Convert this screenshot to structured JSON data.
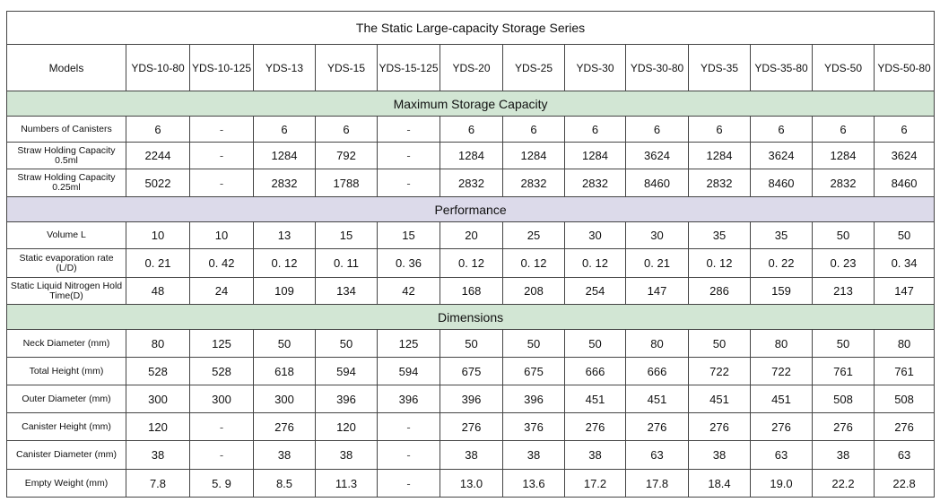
{
  "title": "The Static Large-capacity Storage Series",
  "models_label": "Models",
  "models": [
    "YDS-10-80",
    "YDS-10-125",
    "YDS-13",
    "YDS-15",
    "YDS-15-125",
    "YDS-20",
    "YDS-25",
    "YDS-30",
    "YDS-30-80",
    "YDS-35",
    "YDS-35-80",
    "YDS-50",
    "YDS-50-80"
  ],
  "sections": [
    {
      "name": "Maximum Storage Capacity",
      "color": "#d2e6d4",
      "rows": [
        {
          "label": "Numbers of Canisters",
          "values": [
            "6",
            "-",
            "6",
            "6",
            "-",
            "6",
            "6",
            "6",
            "6",
            "6",
            "6",
            "6",
            "6"
          ]
        },
        {
          "label": "Straw Holding Capacity 0.5ml",
          "values": [
            "2244",
            "-",
            "1284",
            "792",
            "-",
            "1284",
            "1284",
            "1284",
            "3624",
            "1284",
            "3624",
            "1284",
            "3624"
          ]
        },
        {
          "label": "Straw Holding Capacity 0.25ml",
          "values": [
            "5022",
            "-",
            "2832",
            "1788",
            "-",
            "2832",
            "2832",
            "2832",
            "8460",
            "2832",
            "8460",
            "2832",
            "8460"
          ]
        }
      ]
    },
    {
      "name": "Performance",
      "color": "#dcdaea",
      "rows": [
        {
          "label": "Volume L",
          "values": [
            "10",
            "10",
            "13",
            "15",
            "15",
            "20",
            "25",
            "30",
            "30",
            "35",
            "35",
            "50",
            "50"
          ]
        },
        {
          "label": "Static evaporation rate (L/D)",
          "values": [
            "0. 21",
            "0. 42",
            "0. 12",
            "0. 11",
            "0. 36",
            "0. 12",
            "0. 12",
            "0. 12",
            "0. 21",
            "0. 12",
            "0. 22",
            "0. 23",
            "0. 34"
          ]
        },
        {
          "label": "Static Liquid Nitrogen Hold Time(D)",
          "values": [
            "48",
            "24",
            "109",
            "134",
            "42",
            "168",
            "208",
            "254",
            "147",
            "286",
            "159",
            "213",
            "147"
          ]
        }
      ]
    },
    {
      "name": "Dimensions",
      "color": "#d2e6d4",
      "rows": [
        {
          "label": "Neck Diameter (mm)",
          "values": [
            "80",
            "125",
            "50",
            "50",
            "125",
            "50",
            "50",
            "50",
            "80",
            "50",
            "80",
            "50",
            "80"
          ]
        },
        {
          "label": "Total Height (mm)",
          "values": [
            "528",
            "528",
            "618",
            "594",
            "594",
            "675",
            "675",
            "666",
            "666",
            "722",
            "722",
            "761",
            "761"
          ]
        },
        {
          "label": "Outer Diameter (mm)",
          "values": [
            "300",
            "300",
            "300",
            "396",
            "396",
            "396",
            "396",
            "451",
            "451",
            "451",
            "451",
            "508",
            "508"
          ]
        },
        {
          "label": "Canister Height (mm)",
          "values": [
            "120",
            "-",
            "276",
            "120",
            "-",
            "276",
            "376",
            "276",
            "276",
            "276",
            "276",
            "276",
            "276"
          ]
        },
        {
          "label": "Canister Diameter (mm)",
          "values": [
            "38",
            "-",
            "38",
            "38",
            "-",
            "38",
            "38",
            "38",
            "63",
            "38",
            "63",
            "38",
            "63"
          ]
        },
        {
          "label": "Empty Weight (mm)",
          "values": [
            "7.8",
            "5. 9",
            "8.5",
            "11.3",
            "-",
            "13.0",
            "13.6",
            "17.2",
            "17.8",
            "18.4",
            "19.0",
            "22.2",
            "22.8"
          ]
        }
      ]
    }
  ]
}
